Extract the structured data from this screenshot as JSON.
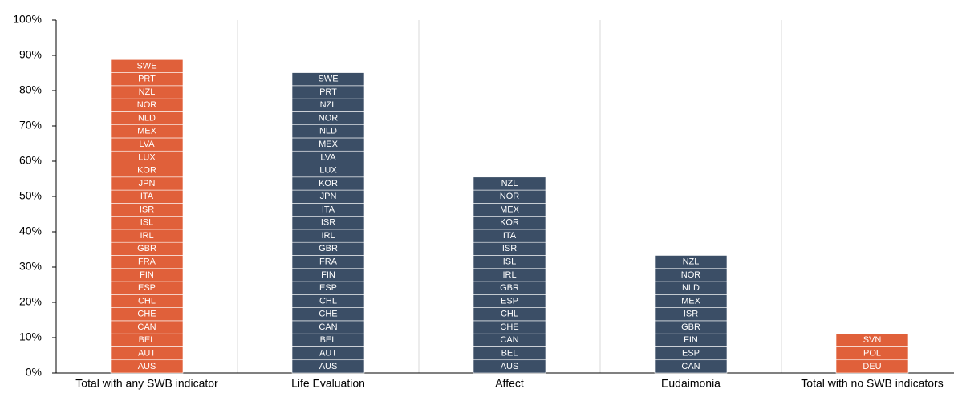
{
  "chart_data": {
    "type": "stacked_bar",
    "ylim": [
      0,
      100
    ],
    "yticks": [
      {
        "value": 0,
        "label": "0%"
      },
      {
        "value": 10,
        "label": "10%"
      },
      {
        "value": 20,
        "label": "20%"
      },
      {
        "value": 30,
        "label": "30%"
      },
      {
        "value": 40,
        "label": "40%"
      },
      {
        "value": 50,
        "label": "50%"
      },
      {
        "value": 60,
        "label": "60%"
      },
      {
        "value": 70,
        "label": "70%"
      },
      {
        "value": 80,
        "label": "80%"
      },
      {
        "value": 90,
        "label": "90%"
      },
      {
        "value": 100,
        "label": "100%"
      }
    ],
    "bars": [
      {
        "category": "Total with any SWB indicator",
        "color": "#e0603a",
        "segments": [
          {
            "label": "AUS",
            "value": 3.7
          },
          {
            "label": "AUT",
            "value": 3.7
          },
          {
            "label": "BEL",
            "value": 3.7
          },
          {
            "label": "CAN",
            "value": 3.7
          },
          {
            "label": "CHE",
            "value": 3.7
          },
          {
            "label": "CHL",
            "value": 3.7
          },
          {
            "label": "ESP",
            "value": 3.7
          },
          {
            "label": "FIN",
            "value": 3.7
          },
          {
            "label": "FRA",
            "value": 3.7
          },
          {
            "label": "GBR",
            "value": 3.7
          },
          {
            "label": "IRL",
            "value": 3.7
          },
          {
            "label": "ISL",
            "value": 3.7
          },
          {
            "label": "ISR",
            "value": 3.7
          },
          {
            "label": "ITA",
            "value": 3.7
          },
          {
            "label": "JPN",
            "value": 3.7
          },
          {
            "label": "KOR",
            "value": 3.7
          },
          {
            "label": "LUX",
            "value": 3.7
          },
          {
            "label": "LVA",
            "value": 3.7
          },
          {
            "label": "MEX",
            "value": 3.7
          },
          {
            "label": "NLD",
            "value": 3.7
          },
          {
            "label": "NOR",
            "value": 3.7
          },
          {
            "label": "NZL",
            "value": 3.7
          },
          {
            "label": "PRT",
            "value": 3.7
          },
          {
            "label": "SWE",
            "value": 3.7
          }
        ]
      },
      {
        "category": "Life Evaluation",
        "color": "#3b4e66",
        "segments": [
          {
            "label": "AUS",
            "value": 3.7
          },
          {
            "label": "AUT",
            "value": 3.7
          },
          {
            "label": "BEL",
            "value": 3.7
          },
          {
            "label": "CAN",
            "value": 3.7
          },
          {
            "label": "CHE",
            "value": 3.7
          },
          {
            "label": "CHL",
            "value": 3.7
          },
          {
            "label": "ESP",
            "value": 3.7
          },
          {
            "label": "FIN",
            "value": 3.7
          },
          {
            "label": "FRA",
            "value": 3.7
          },
          {
            "label": "GBR",
            "value": 3.7
          },
          {
            "label": "IRL",
            "value": 3.7
          },
          {
            "label": "ISR",
            "value": 3.7
          },
          {
            "label": "ITA",
            "value": 3.7
          },
          {
            "label": "JPN",
            "value": 3.7
          },
          {
            "label": "KOR",
            "value": 3.7
          },
          {
            "label": "LUX",
            "value": 3.7
          },
          {
            "label": "LVA",
            "value": 3.7
          },
          {
            "label": "MEX",
            "value": 3.7
          },
          {
            "label": "NLD",
            "value": 3.7
          },
          {
            "label": "NOR",
            "value": 3.7
          },
          {
            "label": "NZL",
            "value": 3.7
          },
          {
            "label": "PRT",
            "value": 3.7
          },
          {
            "label": "SWE",
            "value": 3.7
          }
        ]
      },
      {
        "category": "Affect",
        "color": "#3b4e66",
        "segments": [
          {
            "label": "AUS",
            "value": 3.7
          },
          {
            "label": "BEL",
            "value": 3.7
          },
          {
            "label": "CAN",
            "value": 3.7
          },
          {
            "label": "CHE",
            "value": 3.7
          },
          {
            "label": "CHL",
            "value": 3.7
          },
          {
            "label": "ESP",
            "value": 3.7
          },
          {
            "label": "GBR",
            "value": 3.7
          },
          {
            "label": "IRL",
            "value": 3.7
          },
          {
            "label": "ISL",
            "value": 3.7
          },
          {
            "label": "ISR",
            "value": 3.7
          },
          {
            "label": "ITA",
            "value": 3.7
          },
          {
            "label": "KOR",
            "value": 3.7
          },
          {
            "label": "MEX",
            "value": 3.7
          },
          {
            "label": "NOR",
            "value": 3.7
          },
          {
            "label": "NZL",
            "value": 3.7
          }
        ]
      },
      {
        "category": "Eudaimonia",
        "color": "#3b4e66",
        "segments": [
          {
            "label": "CAN",
            "value": 3.7
          },
          {
            "label": "ESP",
            "value": 3.7
          },
          {
            "label": "FIN",
            "value": 3.7
          },
          {
            "label": "GBR",
            "value": 3.7
          },
          {
            "label": "ISR",
            "value": 3.7
          },
          {
            "label": "MEX",
            "value": 3.7
          },
          {
            "label": "NLD",
            "value": 3.7
          },
          {
            "label": "NOR",
            "value": 3.7
          },
          {
            "label": "NZL",
            "value": 3.7
          }
        ]
      },
      {
        "category": "Total with no SWB indicators",
        "color": "#e0603a",
        "segments": [
          {
            "label": "DEU",
            "value": 3.7
          },
          {
            "label": "POL",
            "value": 3.7
          },
          {
            "label": "SVN",
            "value": 3.7
          }
        ]
      }
    ]
  }
}
